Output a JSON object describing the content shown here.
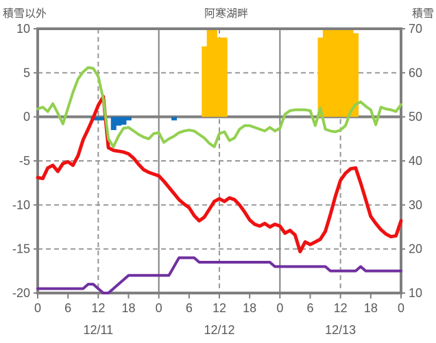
{
  "header": {
    "left_axis_title": "積雪以外",
    "title": "阿寒湖畔",
    "right_axis_title": "積雪"
  },
  "chart_data": {
    "type": "line",
    "title": "阿寒湖畔",
    "left_axis": {
      "label": "積雪以外",
      "min": -20,
      "max": 10,
      "ticks": [
        "10",
        "5",
        "0",
        "-5",
        "-10",
        "-15",
        "-20"
      ],
      "tick_values": [
        10,
        5,
        0,
        -5,
        -10,
        -15,
        -20
      ]
    },
    "right_axis": {
      "label": "積雪",
      "min": 10,
      "max": 70,
      "ticks": [
        "70",
        "60",
        "50",
        "40",
        "30",
        "20",
        "10"
      ],
      "tick_values": [
        70,
        60,
        50,
        40,
        30,
        20,
        10
      ]
    },
    "x_axis": {
      "total_hours": 72,
      "tick_step_hours": 6,
      "hour_tick_labels": [
        "0",
        "6",
        "12",
        "18",
        "0",
        "6",
        "12",
        "18",
        "0",
        "6",
        "12",
        "18",
        "0"
      ],
      "date_labels": [
        "12/11",
        "12/12",
        "12/13"
      ],
      "date_label_center_hours": [
        12,
        36,
        60
      ],
      "solid_gridline_hours": [
        24,
        48
      ],
      "dashed_gridline_hours": [
        12,
        36,
        60
      ]
    },
    "grid": {
      "dashed_horizontal_left_values": [
        5,
        -5,
        -10,
        -15
      ],
      "solid_zero_left_value": 0
    },
    "series": [
      {
        "name": "temperature-line",
        "color": "#ee1111",
        "axis": "left",
        "kind": "line",
        "width": 5,
        "values": [
          -6.9,
          -7.0,
          -5.8,
          -5.5,
          -6.2,
          -5.3,
          -5.1,
          -5.5,
          -4.4,
          -2.6,
          -1.4,
          -0.1,
          1.3,
          2.3,
          -3.5,
          -3.8,
          -3.9,
          -4.0,
          -4.2,
          -4.7,
          -5.4,
          -6.0,
          -6.3,
          -6.5,
          -6.7,
          -7.3,
          -8.0,
          -8.7,
          -9.4,
          -9.9,
          -10.3,
          -11.2,
          -11.8,
          -11.4,
          -10.5,
          -9.6,
          -9.3,
          -9.6,
          -9.2,
          -9.4,
          -10.0,
          -10.8,
          -11.7,
          -12.2,
          -12.4,
          -12.1,
          -12.5,
          -12.2,
          -12.4,
          -13.2,
          -12.9,
          -13.4,
          -15.3,
          -14.2,
          -14.5,
          -14.2,
          -13.9,
          -13.0,
          -11.1,
          -9.0,
          -7.2,
          -6.4,
          -5.9,
          -5.8,
          -7.5,
          -9.4,
          -11.3,
          -12.1,
          -12.8,
          -13.3,
          -13.6,
          -13.5,
          -11.8
        ]
      },
      {
        "name": "green-line",
        "color": "#92d050",
        "axis": "left",
        "kind": "line",
        "width": 4,
        "values": [
          0.9,
          1.1,
          0.6,
          1.5,
          0.4,
          -0.8,
          1.0,
          2.8,
          4.3,
          5.1,
          5.6,
          5.5,
          4.6,
          2.0,
          -2.5,
          -3.4,
          -2.2,
          -1.3,
          -1.2,
          -1.6,
          -2.0,
          -2.3,
          -2.5,
          -1.9,
          -1.8,
          -2.9,
          -2.5,
          -2.2,
          -1.8,
          -1.6,
          -1.5,
          -1.6,
          -2.0,
          -2.4,
          -3.0,
          -3.4,
          -1.9,
          -1.7,
          -2.7,
          -2.4,
          -1.4,
          -1.0,
          -1.0,
          -1.2,
          -1.4,
          -1.6,
          -1.2,
          -1.6,
          -1.3,
          0.3,
          0.7,
          0.8,
          0.8,
          0.8,
          0.7,
          -1.0,
          1.0,
          -1.4,
          -1.6,
          -1.7,
          -1.5,
          -1.0,
          0.6,
          1.4,
          1.7,
          1.2,
          0.8,
          -0.9,
          1.1,
          0.9,
          0.8,
          0.6,
          1.4
        ]
      },
      {
        "name": "snow-depth-line",
        "color": "#7030a0",
        "axis": "right",
        "kind": "line",
        "width": 4,
        "values": [
          11,
          11,
          11,
          11,
          11,
          11,
          11,
          11,
          11,
          11,
          12,
          12,
          11,
          10,
          10,
          11,
          12,
          13,
          14,
          14,
          14,
          14,
          14,
          14,
          14,
          14,
          14,
          16,
          18,
          18,
          18,
          18,
          17,
          17,
          17,
          17,
          17,
          17,
          17,
          17,
          17,
          17,
          17,
          17,
          17,
          17,
          17,
          16,
          16,
          16,
          16,
          16,
          16,
          16,
          16,
          16,
          16,
          16,
          15,
          15,
          15,
          15,
          15,
          15,
          16,
          15,
          15,
          15,
          15,
          15,
          15,
          15,
          15
        ]
      },
      {
        "name": "sunshine-bars",
        "color": "#ffc000",
        "axis": "left",
        "kind": "bar-up",
        "bars": {
          "33": 8,
          "34": 10,
          "35": 10,
          "36": 9,
          "37": 9,
          "56": 9,
          "57": 10,
          "58": 10,
          "59": 10,
          "60": 10,
          "61": 10,
          "62": 10,
          "63": 9.5
        }
      },
      {
        "name": "precipitation-bars",
        "color": "#0f70c0",
        "axis": "left",
        "kind": "bar-down",
        "bars": {
          "11": 0.4,
          "12": 0.4,
          "13": 0.4,
          "15": 1.5,
          "16": 1.0,
          "17": 0.9,
          "18": 0.4,
          "27": 0.4
        }
      }
    ],
    "colors": {
      "border": "#7f7f7f",
      "grid_dashed": "#969696",
      "text": "#595959"
    },
    "legend_position": "none"
  }
}
